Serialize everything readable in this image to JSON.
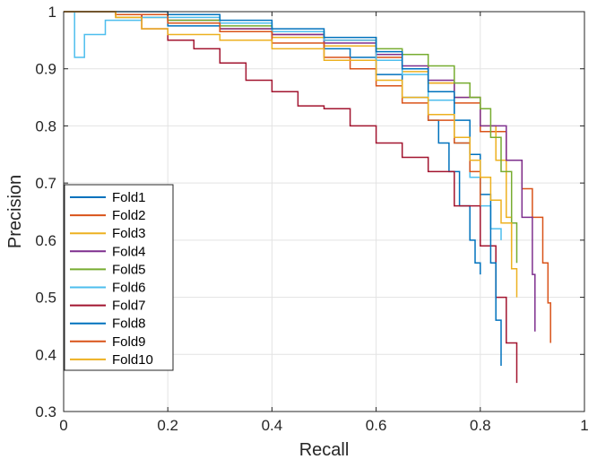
{
  "chart_data": {
    "type": "line",
    "title": "",
    "xlabel": "Recall",
    "ylabel": "Precision",
    "xlim": [
      0,
      1
    ],
    "ylim": [
      0.3,
      1
    ],
    "xticks": [
      0,
      0.2,
      0.4,
      0.6,
      0.8,
      1
    ],
    "xtick_labels": [
      "0",
      "0.2",
      "0.4",
      "0.6",
      "0.8",
      "1"
    ],
    "yticks": [
      0.3,
      0.4,
      0.5,
      0.6,
      0.7,
      0.8,
      0.9,
      1
    ],
    "ytick_labels": [
      "0.3",
      "0.4",
      "0.5",
      "0.6",
      "0.7",
      "0.8",
      "0.9",
      "1"
    ],
    "grid": true,
    "legend_position": "bottom-left",
    "series": [
      {
        "name": "Fold1",
        "color": "#0072BD",
        "x": [
          0.0,
          0.05,
          0.1,
          0.2,
          0.3,
          0.4,
          0.5,
          0.55,
          0.6,
          0.65,
          0.7,
          0.72,
          0.74,
          0.76,
          0.78,
          0.79,
          0.8
        ],
        "y": [
          1.0,
          1.0,
          0.99,
          0.975,
          0.965,
          0.955,
          0.935,
          0.92,
          0.89,
          0.85,
          0.81,
          0.77,
          0.72,
          0.66,
          0.6,
          0.56,
          0.54
        ]
      },
      {
        "name": "Fold2",
        "color": "#D95319",
        "x": [
          0.0,
          0.05,
          0.1,
          0.2,
          0.3,
          0.4,
          0.5,
          0.6,
          0.65,
          0.7,
          0.75,
          0.8,
          0.85,
          0.88,
          0.9,
          0.92,
          0.93,
          0.935
        ],
        "y": [
          1.0,
          1.0,
          0.995,
          0.985,
          0.97,
          0.96,
          0.95,
          0.92,
          0.9,
          0.875,
          0.84,
          0.79,
          0.74,
          0.69,
          0.64,
          0.56,
          0.49,
          0.42
        ]
      },
      {
        "name": "Fold3",
        "color": "#EDB120",
        "x": [
          0.0,
          0.05,
          0.1,
          0.2,
          0.3,
          0.4,
          0.5,
          0.6,
          0.65,
          0.7,
          0.75,
          0.8,
          0.83,
          0.85,
          0.86,
          0.87
        ],
        "y": [
          1.0,
          1.0,
          0.99,
          0.98,
          0.97,
          0.955,
          0.94,
          0.915,
          0.895,
          0.875,
          0.85,
          0.8,
          0.74,
          0.64,
          0.55,
          0.5
        ]
      },
      {
        "name": "Fold4",
        "color": "#7E2F8E",
        "x": [
          0.0,
          0.05,
          0.1,
          0.2,
          0.3,
          0.4,
          0.5,
          0.6,
          0.65,
          0.7,
          0.75,
          0.8,
          0.85,
          0.88,
          0.9,
          0.905
        ],
        "y": [
          1.0,
          1.0,
          0.995,
          0.985,
          0.97,
          0.96,
          0.945,
          0.925,
          0.905,
          0.88,
          0.85,
          0.8,
          0.74,
          0.64,
          0.54,
          0.44
        ]
      },
      {
        "name": "Fold5",
        "color": "#77AC30",
        "x": [
          0.0,
          0.05,
          0.1,
          0.2,
          0.3,
          0.4,
          0.5,
          0.6,
          0.65,
          0.7,
          0.75,
          0.78,
          0.8,
          0.82,
          0.84,
          0.86,
          0.87
        ],
        "y": [
          1.0,
          1.0,
          0.995,
          0.985,
          0.975,
          0.965,
          0.955,
          0.935,
          0.925,
          0.905,
          0.875,
          0.85,
          0.83,
          0.78,
          0.72,
          0.63,
          0.56
        ]
      },
      {
        "name": "Fold6",
        "color": "#4DBEEE",
        "x": [
          0.02,
          0.021,
          0.04,
          0.08,
          0.15,
          0.2,
          0.3,
          0.4,
          0.5,
          0.6,
          0.65,
          0.7,
          0.75,
          0.78,
          0.8,
          0.82,
          0.84
        ],
        "y": [
          1.0,
          0.92,
          0.96,
          0.985,
          0.99,
          0.99,
          0.98,
          0.965,
          0.95,
          0.915,
          0.89,
          0.845,
          0.77,
          0.71,
          0.66,
          0.62,
          0.6
        ]
      },
      {
        "name": "Fold7",
        "color": "#A2142F",
        "x": [
          0.0,
          0.05,
          0.1,
          0.15,
          0.2,
          0.25,
          0.3,
          0.35,
          0.4,
          0.45,
          0.5,
          0.55,
          0.6,
          0.65,
          0.7,
          0.75,
          0.8,
          0.83,
          0.85,
          0.87
        ],
        "y": [
          1.0,
          1.0,
          0.995,
          0.97,
          0.95,
          0.935,
          0.91,
          0.88,
          0.86,
          0.835,
          0.83,
          0.8,
          0.77,
          0.745,
          0.72,
          0.66,
          0.59,
          0.5,
          0.42,
          0.35
        ]
      },
      {
        "name": "Fold8",
        "color": "#0072BD",
        "x": [
          0.0,
          0.05,
          0.1,
          0.2,
          0.3,
          0.4,
          0.5,
          0.6,
          0.65,
          0.7,
          0.75,
          0.78,
          0.8,
          0.82,
          0.83,
          0.84
        ],
        "y": [
          1.0,
          1.0,
          1.0,
          0.995,
          0.985,
          0.97,
          0.955,
          0.93,
          0.9,
          0.86,
          0.81,
          0.75,
          0.68,
          0.56,
          0.46,
          0.38
        ]
      },
      {
        "name": "Fold9",
        "color": "#D95319",
        "x": [
          0.0,
          0.05,
          0.1,
          0.2,
          0.3,
          0.4,
          0.5,
          0.55,
          0.6,
          0.65,
          0.7,
          0.75,
          0.78,
          0.8
        ],
        "y": [
          1.0,
          1.0,
          0.995,
          0.98,
          0.965,
          0.945,
          0.92,
          0.9,
          0.87,
          0.84,
          0.81,
          0.77,
          0.72,
          0.66
        ]
      },
      {
        "name": "Fold10",
        "color": "#EDB120",
        "x": [
          0.0,
          0.05,
          0.1,
          0.15,
          0.2,
          0.3,
          0.4,
          0.5,
          0.6,
          0.65,
          0.7,
          0.75,
          0.78,
          0.8,
          0.82,
          0.84,
          0.86
        ],
        "y": [
          1.0,
          1.0,
          0.99,
          0.97,
          0.96,
          0.95,
          0.935,
          0.915,
          0.88,
          0.85,
          0.82,
          0.78,
          0.74,
          0.71,
          0.67,
          0.63,
          0.58
        ]
      }
    ]
  }
}
